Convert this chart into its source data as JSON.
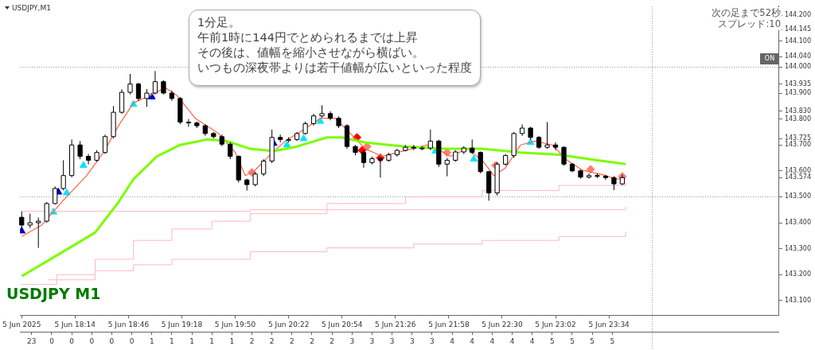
{
  "chart_data": {
    "type": "candlestick",
    "title": "USDJPY,M1",
    "annotations": [
      "1分足。",
      "午前1時に144円でとめられるまでは上昇",
      "その後は、値幅を縮小させながら横ばい。",
      "いつもの深夜帯よりは若干値幅が広いといった程度",
      "USDJPY M1",
      "次の足まで52秒",
      "スプレッド:10",
      "ON"
    ],
    "x": [
      "2025-06-05T17:42",
      "2025-06-05T17:47",
      "2025-06-05T17:52",
      "2025-06-05T17:57",
      "2025-06-05T18:02",
      "2025-06-05T18:07",
      "2025-06-05T18:12",
      "2025-06-05T18:17",
      "2025-06-05T18:22",
      "2025-06-05T18:27",
      "2025-06-05T18:32",
      "2025-06-05T18:37",
      "2025-06-05T18:42",
      "2025-06-05T18:47",
      "2025-06-05T18:52",
      "2025-06-05T18:57",
      "2025-06-05T19:02",
      "2025-06-05T19:07",
      "2025-06-05T19:12",
      "2025-06-05T19:17",
      "2025-06-05T19:22",
      "2025-06-05T19:27",
      "2025-06-05T19:32",
      "2025-06-05T19:37",
      "2025-06-05T19:42",
      "2025-06-05T19:47",
      "2025-06-05T19:52",
      "2025-06-05T19:57",
      "2025-06-05T20:02",
      "2025-06-05T20:07",
      "2025-06-05T20:12",
      "2025-06-05T20:17",
      "2025-06-05T20:22",
      "2025-06-05T20:27",
      "2025-06-05T20:32",
      "2025-06-05T20:37",
      "2025-06-05T20:42",
      "2025-06-05T20:47",
      "2025-06-05T20:52",
      "2025-06-05T20:57",
      "2025-06-05T21:02",
      "2025-06-05T21:07",
      "2025-06-05T21:12",
      "2025-06-05T21:17",
      "2025-06-05T21:22",
      "2025-06-05T21:27",
      "2025-06-05T21:32",
      "2025-06-05T21:37",
      "2025-06-05T21:42",
      "2025-06-05T21:47",
      "2025-06-05T21:52",
      "2025-06-05T21:57",
      "2025-06-05T22:02",
      "2025-06-05T22:07",
      "2025-06-05T22:12",
      "2025-06-05T22:17",
      "2025-06-05T22:22",
      "2025-06-05T22:27",
      "2025-06-05T22:32",
      "2025-06-05T22:37",
      "2025-06-05T22:42",
      "2025-06-05T22:47",
      "2025-06-05T22:52",
      "2025-06-05T22:57",
      "2025-06-05T23:02",
      "2025-06-05T23:07",
      "2025-06-05T23:12",
      "2025-06-05T23:17",
      "2025-06-05T23:22",
      "2025-06-05T23:27",
      "2025-06-05T23:32",
      "2025-06-05T23:37",
      "2025-06-05T23:42"
    ],
    "ohlc": [
      [
        143.421,
        143.444,
        143.376,
        143.391
      ],
      [
        143.391,
        143.435,
        143.38,
        143.4
      ],
      [
        143.4,
        143.42,
        143.303,
        143.406
      ],
      [
        143.406,
        143.48,
        143.4,
        143.474
      ],
      [
        143.474,
        143.54,
        143.47,
        143.532
      ],
      [
        143.532,
        143.641,
        143.525,
        143.582
      ],
      [
        143.582,
        143.721,
        143.575,
        143.7
      ],
      [
        143.7,
        143.715,
        143.645,
        143.656
      ],
      [
        143.656,
        143.665,
        143.625,
        143.641
      ],
      [
        143.641,
        143.68,
        143.635,
        143.671
      ],
      [
        143.671,
        143.74,
        143.665,
        143.732
      ],
      [
        143.732,
        143.85,
        143.725,
        143.826
      ],
      [
        143.826,
        143.915,
        143.82,
        143.903
      ],
      [
        143.903,
        143.974,
        143.895,
        143.935
      ],
      [
        143.935,
        143.94,
        143.87,
        143.879
      ],
      [
        143.879,
        143.915,
        143.847,
        143.9
      ],
      [
        143.9,
        143.985,
        143.895,
        143.944
      ],
      [
        143.944,
        143.95,
        143.895,
        143.9
      ],
      [
        143.9,
        143.91,
        143.87,
        143.879
      ],
      [
        143.879,
        143.885,
        143.78,
        143.788
      ],
      [
        143.788,
        143.8,
        143.77,
        143.785
      ],
      [
        143.785,
        143.79,
        143.765,
        143.774
      ],
      [
        143.774,
        143.78,
        143.735,
        143.744
      ],
      [
        143.744,
        143.75,
        143.725,
        143.732
      ],
      [
        143.732,
        143.74,
        143.695,
        143.703
      ],
      [
        143.703,
        143.71,
        143.645,
        143.656
      ],
      [
        143.656,
        143.66,
        143.555,
        143.565
      ],
      [
        143.565,
        143.57,
        143.524,
        143.547
      ],
      [
        143.547,
        143.595,
        143.54,
        143.588
      ],
      [
        143.588,
        143.645,
        143.58,
        143.638
      ],
      [
        143.638,
        143.759,
        143.63,
        143.729
      ],
      [
        143.729,
        143.74,
        143.71,
        143.721
      ],
      [
        143.721,
        143.73,
        143.71,
        143.721
      ],
      [
        143.721,
        143.75,
        143.715,
        143.744
      ],
      [
        143.744,
        143.79,
        143.74,
        143.782
      ],
      [
        143.782,
        143.82,
        143.775,
        143.812
      ],
      [
        143.812,
        143.853,
        143.805,
        143.821
      ],
      [
        143.821,
        143.83,
        143.795,
        143.803
      ],
      [
        143.803,
        143.81,
        143.765,
        143.774
      ],
      [
        143.774,
        143.78,
        143.685,
        143.694
      ],
      [
        143.694,
        143.7,
        143.66,
        143.671
      ],
      [
        143.671,
        143.68,
        143.612,
        143.632
      ],
      [
        143.632,
        143.655,
        143.625,
        143.647
      ],
      [
        143.647,
        143.655,
        143.574,
        143.641
      ],
      [
        143.641,
        143.67,
        143.635,
        143.662
      ],
      [
        143.662,
        143.685,
        143.655,
        143.679
      ],
      [
        143.679,
        143.7,
        143.675,
        143.691
      ],
      [
        143.691,
        143.7,
        143.68,
        143.688
      ],
      [
        143.688,
        143.695,
        143.68,
        143.688
      ],
      [
        143.688,
        143.759,
        143.68,
        143.715
      ],
      [
        143.715,
        143.72,
        143.615,
        143.626
      ],
      [
        143.626,
        143.65,
        143.579,
        143.641
      ],
      [
        143.641,
        143.68,
        143.635,
        143.673
      ],
      [
        143.673,
        143.695,
        143.665,
        143.688
      ],
      [
        143.688,
        143.721,
        143.665,
        143.671
      ],
      [
        143.671,
        143.675,
        143.59,
        143.597
      ],
      [
        143.597,
        143.6,
        143.485,
        143.515
      ],
      [
        143.515,
        143.635,
        143.505,
        143.626
      ],
      [
        143.626,
        143.665,
        143.62,
        143.659
      ],
      [
        143.659,
        143.75,
        143.65,
        143.744
      ],
      [
        143.744,
        143.779,
        143.735,
        143.765
      ],
      [
        143.765,
        143.77,
        143.72,
        143.729
      ],
      [
        143.729,
        143.735,
        143.685,
        143.691
      ],
      [
        143.691,
        143.788,
        143.685,
        143.7
      ],
      [
        143.7,
        143.71,
        143.68,
        143.691
      ],
      [
        143.691,
        143.695,
        143.62,
        143.626
      ],
      [
        143.626,
        143.63,
        143.595,
        143.6
      ],
      [
        143.6,
        143.605,
        143.57,
        143.576
      ],
      [
        143.576,
        143.59,
        143.57,
        143.582
      ],
      [
        143.582,
        143.59,
        143.572,
        143.579
      ],
      [
        143.579,
        143.585,
        143.565,
        143.574
      ],
      [
        143.574,
        143.58,
        143.526,
        143.55
      ],
      [
        143.55,
        143.585,
        143.545,
        143.574
      ]
    ],
    "series": [
      {
        "type": "line",
        "color": "#7cfc00",
        "x": [
          "2025-06-05T17:42",
          "2025-06-05T18:03",
          "2025-06-05T18:26",
          "2025-06-05T18:40",
          "2025-06-05T18:49",
          "2025-06-05T19:03",
          "2025-06-05T19:17",
          "2025-06-05T19:33",
          "2025-06-05T19:45",
          "2025-06-05T19:59",
          "2025-06-05T20:13",
          "2025-06-05T20:27",
          "2025-06-05T20:45",
          "2025-06-05T20:54",
          "2025-06-05T21:08",
          "2025-06-05T21:32",
          "2025-06-05T21:55",
          "2025-06-05T22:18",
          "2025-06-05T22:41",
          "2025-06-05T23:04",
          "2025-06-05T23:27",
          "2025-06-05T23:44"
        ],
        "values": [
          143.194,
          143.274,
          143.362,
          143.479,
          143.568,
          143.656,
          143.7,
          143.721,
          143.715,
          143.685,
          143.676,
          143.694,
          143.729,
          143.729,
          143.709,
          143.694,
          143.685,
          143.685,
          143.671,
          143.662,
          143.641,
          143.626
        ]
      },
      {
        "type": "line",
        "color": "#ff6347",
        "x": [
          "2025-06-05T17:42",
          "2025-06-05T17:54",
          "2025-06-05T18:08",
          "2025-06-05T18:21",
          "2025-06-05T18:31",
          "2025-06-05T18:40",
          "2025-06-05T18:49",
          "2025-06-05T18:59",
          "2025-06-05T19:08",
          "2025-06-05T19:15",
          "2025-06-05T19:26",
          "2025-06-05T19:40",
          "2025-06-05T19:50",
          "2025-06-05T19:56",
          "2025-06-05T20:01",
          "2025-06-05T20:10",
          "2025-06-05T20:20",
          "2025-06-05T20:31",
          "2025-06-05T20:41",
          "2025-06-05T20:50",
          "2025-06-05T20:59",
          "2025-06-05T21:08",
          "2025-06-05T21:18",
          "2025-06-05T21:32",
          "2025-06-05T21:45",
          "2025-06-05T21:55",
          "2025-06-05T21:59",
          "2025-06-05T22:09",
          "2025-06-05T22:18",
          "2025-06-05T22:25",
          "2025-06-05T22:32",
          "2025-06-05T22:41",
          "2025-06-05T22:50",
          "2025-06-05T23:00",
          "2025-06-05T23:09",
          "2025-06-05T23:18",
          "2025-06-05T23:32",
          "2025-06-05T23:39",
          "2025-06-05T23:44"
        ],
        "values": [
          143.347,
          143.391,
          143.494,
          143.582,
          143.671,
          143.774,
          143.862,
          143.891,
          143.921,
          143.891,
          143.803,
          143.744,
          143.671,
          143.582,
          143.597,
          143.656,
          143.715,
          143.759,
          143.803,
          143.803,
          143.744,
          143.685,
          143.656,
          143.679,
          143.7,
          143.671,
          143.656,
          143.685,
          143.641,
          143.582,
          143.612,
          143.7,
          143.715,
          143.7,
          143.641,
          143.603,
          143.582,
          143.568,
          143.574
        ]
      },
      {
        "type": "step",
        "color": "#ffb6c1",
        "x": [
          "2025-06-05T17:42",
          "2025-06-05T19:59",
          "2025-06-05T23:44"
        ],
        "values": [
          143.444,
          143.45,
          143.462
        ]
      },
      {
        "type": "step",
        "color": "#ffb6c1",
        "x": [
          "2025-06-05T17:42",
          "2025-06-05T18:03",
          "2025-06-05T18:26",
          "2025-06-05T18:49",
          "2025-06-05T19:12",
          "2025-06-05T19:36",
          "2025-06-05T19:59",
          "2025-06-05T20:45",
          "2025-06-05T21:32",
          "2025-06-05T22:18",
          "2025-06-05T23:04",
          "2025-06-05T23:44"
        ],
        "values": [
          143.162,
          143.2,
          143.259,
          143.332,
          143.376,
          143.406,
          143.435,
          143.474,
          143.5,
          143.524,
          143.544,
          143.553
        ]
      },
      {
        "type": "step",
        "color": "#ffb6c1",
        "x": [
          "2025-06-05T17:58",
          "2025-06-05T18:26",
          "2025-06-05T18:49",
          "2025-06-05T19:12",
          "2025-06-05T19:59",
          "2025-06-05T20:45",
          "2025-06-05T21:37",
          "2025-06-05T22:18",
          "2025-06-05T23:04",
          "2025-06-05T23:44"
        ],
        "values": [
          143.18,
          143.215,
          143.238,
          143.259,
          143.288,
          143.303,
          143.318,
          143.332,
          143.347,
          143.365
        ]
      },
      {
        "type": "scatter",
        "marker": "triangle",
        "color": "#00e5ff",
        "x": [
          "2025-06-05T18:01",
          "2025-06-05T18:09",
          "2025-06-05T18:19",
          "2025-06-05T18:49",
          "2025-06-05T20:21",
          "2025-06-05T20:31",
          "2025-06-05T20:41",
          "2025-06-05T21:50",
          "2025-06-05T22:13",
          "2025-06-05T22:47"
        ],
        "values": [
          143.441,
          143.515,
          143.621,
          143.856,
          143.7,
          143.724,
          143.791,
          143.676,
          143.645,
          143.709
        ]
      },
      {
        "type": "scatter",
        "marker": "triangle",
        "color": "#0000cd",
        "x": [
          "2025-06-05T17:42",
          "2025-06-05T18:04",
          "2025-06-05T19:00",
          "2025-06-05T20:13"
        ],
        "values": [
          143.368,
          143.518,
          143.885,
          143.706
        ]
      },
      {
        "type": "scatter",
        "marker": "diamond",
        "color": "#ff0000",
        "x": [
          "2025-06-05T21:03",
          "2025-06-05T21:06",
          "2025-06-05T21:17"
        ],
        "values": [
          143.729,
          143.679,
          143.65
        ]
      },
      {
        "type": "scatter",
        "marker": "diamond",
        "color": "#fa8072",
        "x": [
          "2025-06-05T20:00",
          "2025-06-05T21:09",
          "2025-06-05T21:57",
          "2025-06-05T22:26",
          "2025-06-05T23:23",
          "2025-06-05T23:42"
        ],
        "values": [
          143.594,
          143.694,
          143.671,
          143.621,
          143.606,
          143.579
        ]
      }
    ],
    "xlim": [
      "2025-06-05T17:41",
      "2025-06-06T01:16"
    ],
    "xticks": [
      {
        "value": "2025-06-05T17:42",
        "label": "5 Jun 2025"
      },
      {
        "value": "2025-06-05T18:14",
        "label": "5 Jun 18:14"
      },
      {
        "value": "2025-06-05T18:46",
        "label": "5 Jun 18:46"
      },
      {
        "value": "2025-06-05T19:18",
        "label": "5 Jun 19:18"
      },
      {
        "value": "2025-06-05T19:50",
        "label": "5 Jun 19:50"
      },
      {
        "value": "2025-06-05T20:22",
        "label": "5 Jun 20:22"
      },
      {
        "value": "2025-06-05T20:54",
        "label": "5 Jun 20:54"
      },
      {
        "value": "2025-06-05T21:26",
        "label": "5 Jun 21:26"
      },
      {
        "value": "2025-06-05T21:58",
        "label": "5 Jun 21:58"
      },
      {
        "value": "2025-06-05T22:30",
        "label": "5 Jun 22:30"
      },
      {
        "value": "2025-06-05T23:02",
        "label": "5 Jun 23:02"
      },
      {
        "value": "2025-06-05T23:34",
        "label": "5 Jun 23:34"
      }
    ],
    "x2lim": [
      "2025-06-05T23:41",
      "2025-06-06T07:16"
    ],
    "x2ticks": [
      {
        "value": "2025-06-05T23:48",
        "label": "23"
      },
      {
        "value": "2025-06-06T00:00",
        "label": "0"
      },
      {
        "value": "2025-06-06T00:12",
        "label": "0"
      },
      {
        "value": "2025-06-06T00:24",
        "label": "0"
      },
      {
        "value": "2025-06-06T00:36",
        "label": "0"
      },
      {
        "value": "2025-06-06T00:48",
        "label": "0"
      },
      {
        "value": "2025-06-06T01:00",
        "label": "1"
      },
      {
        "value": "2025-06-06T01:12",
        "label": "1"
      },
      {
        "value": "2025-06-06T01:24",
        "label": "1"
      },
      {
        "value": "2025-06-06T01:36",
        "label": "1"
      },
      {
        "value": "2025-06-06T01:48",
        "label": "1"
      },
      {
        "value": "2025-06-06T02:00",
        "label": "2"
      },
      {
        "value": "2025-06-06T02:12",
        "label": "2"
      },
      {
        "value": "2025-06-06T02:24",
        "label": "2"
      },
      {
        "value": "2025-06-06T02:36",
        "label": "2"
      },
      {
        "value": "2025-06-06T02:48",
        "label": "2"
      },
      {
        "value": "2025-06-06T03:00",
        "label": "3"
      },
      {
        "value": "2025-06-06T03:12",
        "label": "3"
      },
      {
        "value": "2025-06-06T03:24",
        "label": "3"
      },
      {
        "value": "2025-06-06T03:36",
        "label": "3"
      },
      {
        "value": "2025-06-06T03:48",
        "label": "3"
      },
      {
        "value": "2025-06-06T04:00",
        "label": "4"
      },
      {
        "value": "2025-06-06T04:12",
        "label": "4"
      },
      {
        "value": "2025-06-06T04:24",
        "label": "4"
      },
      {
        "value": "2025-06-06T04:36",
        "label": "4"
      },
      {
        "value": "2025-06-06T04:48",
        "label": "4"
      },
      {
        "value": "2025-06-06T05:00",
        "label": "5"
      },
      {
        "value": "2025-06-06T05:12",
        "label": "5"
      },
      {
        "value": "2025-06-06T05:24",
        "label": "5"
      },
      {
        "value": "2025-06-06T05:36",
        "label": "5"
      }
    ],
    "ylim": [
      143.043,
      144.235
    ],
    "yticks": [
      {
        "value": 144.2,
        "label": "144.200"
      },
      {
        "value": 144.145,
        "label": "144.145"
      },
      {
        "value": 144.1,
        "label": "144.100"
      },
      {
        "value": 144.04,
        "label": "144.040"
      },
      {
        "value": 144,
        "label": "144.000"
      },
      {
        "value": 143.935,
        "label": "143.935"
      },
      {
        "value": 143.9,
        "label": "143.900"
      },
      {
        "value": 143.83,
        "label": "143.830"
      },
      {
        "value": 143.8,
        "label": "143.800"
      },
      {
        "value": 143.725,
        "label": "143.725"
      },
      {
        "value": 143.7,
        "label": "143.700"
      },
      {
        "value": 143.6,
        "label": "143.600"
      },
      {
        "value": 143.574,
        "label": "143.574"
      },
      {
        "value": 143.5,
        "label": "143.500"
      },
      {
        "value": 143.4,
        "label": "143.400"
      },
      {
        "value": 143.3,
        "label": "143.300"
      },
      {
        "value": 143.2,
        "label": "143.200"
      },
      {
        "value": 143.1,
        "label": "143.100"
      }
    ],
    "ref_lines": [
      {
        "axis": "y",
        "value": 144,
        "color": "#888888",
        "line_style": "dotted"
      },
      {
        "axis": "y",
        "value": 143.5,
        "color": "#888888",
        "line_style": "dotted"
      },
      {
        "axis": "x",
        "value": "2025-06-06T00:00",
        "color": "#888888",
        "line_style": "dotted"
      }
    ],
    "legend": false,
    "grid": false,
    "marker": "none"
  }
}
